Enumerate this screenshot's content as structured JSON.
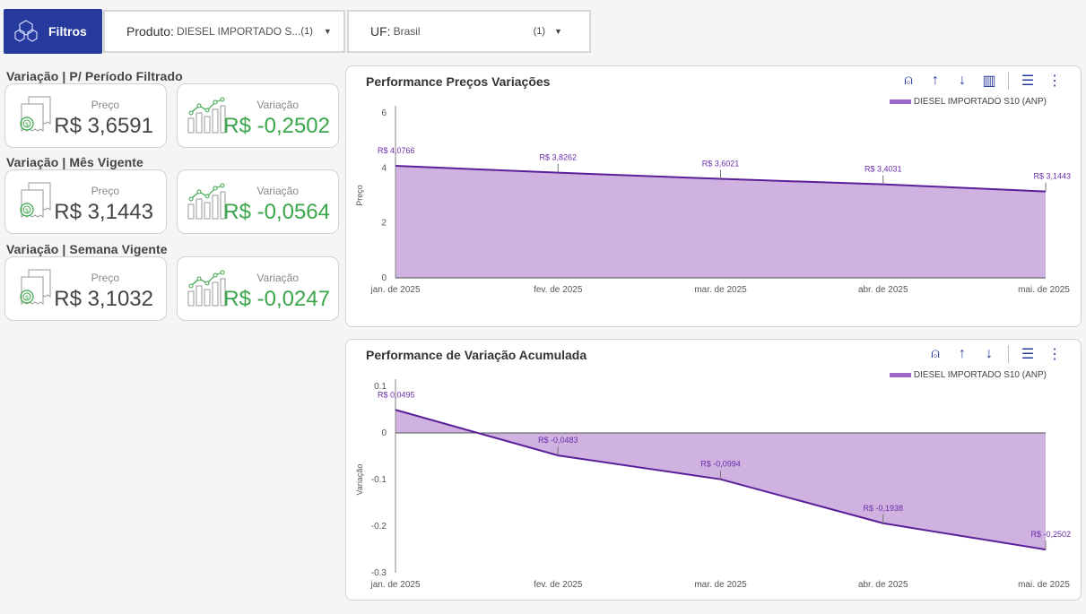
{
  "filters": {
    "label": "Filtros",
    "produto": {
      "key": "Produto:",
      "value": "DIESEL IMPORTADO S...",
      "count": "(1)"
    },
    "uf": {
      "key": "UF:",
      "value": "Brasil",
      "count": "(1)"
    }
  },
  "kpis": [
    {
      "title": "Variação | P/ Período Filtrado",
      "preco_label": "Preço",
      "preco": "R$ 3,6591",
      "variacao_label": "Variação",
      "variacao": "R$ -0,2502"
    },
    {
      "title": "Variação | Mês Vigente",
      "preco_label": "Preço",
      "preco": "R$ 3,1443",
      "variacao_label": "Variação",
      "variacao": "R$ -0,0564"
    },
    {
      "title": "Variação | Semana Vigente",
      "preco_label": "Preço",
      "preco": "R$ 3,1032",
      "variacao_label": "Variação",
      "variacao": "R$ -0,0247"
    }
  ],
  "colors": {
    "brand": "#26399c",
    "positive": "#3aa64a",
    "series_line": "#5b1f9a",
    "series_fill": "#cfb2e0"
  },
  "chart_data": [
    {
      "type": "area",
      "title": "Performance Preços Variações",
      "ylabel": "Preço",
      "xlabel": "",
      "x": [
        "jan. de 2025",
        "fev. de 2025",
        "mar. de 2025",
        "abr. de 2025",
        "mai. de 2025"
      ],
      "yticks": [
        "0",
        "2",
        "4",
        "6"
      ],
      "ylim": [
        0,
        6
      ],
      "series": [
        {
          "name": "DIESEL IMPORTADO S10 (ANP)",
          "values": [
            4.0766,
            3.8262,
            3.6021,
            3.4031,
            3.1443
          ],
          "labels": [
            "R$ 4,0766",
            "R$ 3,8262",
            "R$ 3,6021",
            "R$ 3,4031",
            "R$ 3,1443"
          ]
        }
      ],
      "legend": "top-right",
      "grid": false
    },
    {
      "type": "area",
      "title": "Performance de Variação Acumulada",
      "ylabel": "Variação",
      "xlabel": "",
      "x": [
        "jan. de 2025",
        "fev. de 2025",
        "mar. de 2025",
        "abr. de 2025",
        "mai. de 2025"
      ],
      "yticks": [
        "-0.3",
        "-0.2",
        "-0.1",
        "0",
        "0.1"
      ],
      "ylim": [
        -0.3,
        0.1
      ],
      "series": [
        {
          "name": "DIESEL IMPORTADO S10 (ANP)",
          "values": [
            0.0495,
            -0.0483,
            -0.0994,
            -0.1938,
            -0.2502
          ],
          "labels": [
            "R$ 0,0495",
            "R$ -0,0483",
            "R$ -0,0994",
            "R$ -0,1938",
            "R$ -0,2502"
          ]
        }
      ],
      "legend": "top-right",
      "grid": false
    }
  ]
}
